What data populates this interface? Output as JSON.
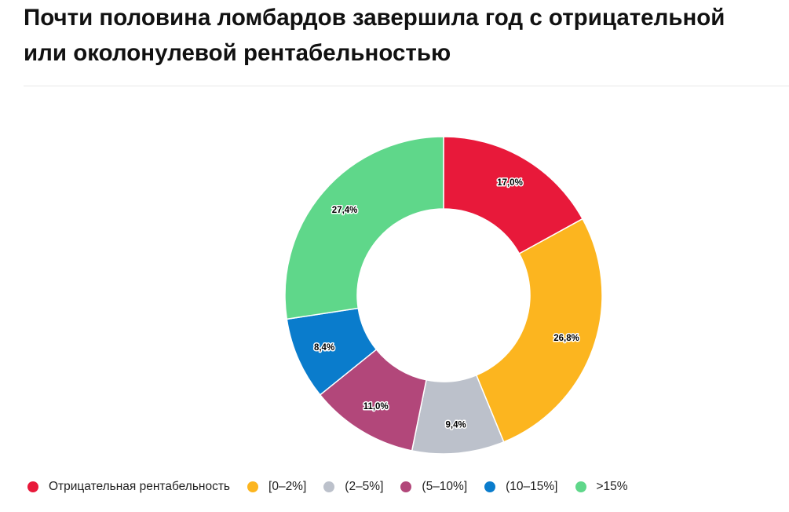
{
  "title_lines": [
    "Почти половина ломбардов завершила год с отрицательной",
    "или околонулевой рентабельностью"
  ],
  "chart_data": {
    "type": "pie",
    "donut": true,
    "title": "Почти половина ломбардов завершила год с отрицательной или околонулевой рентабельностью",
    "legend_position": "bottom-left",
    "slices": [
      {
        "name": "Отрицательная рентабельность",
        "value": 17.0,
        "label": "17,0%",
        "color": "#e8193a"
      },
      {
        "name": "[0–2%]",
        "value": 26.8,
        "label": "26,8%",
        "color": "#fcb51f"
      },
      {
        "name": "(2–5%]",
        "value": 9.4,
        "label": "9,4%",
        "color": "#bcc1cb"
      },
      {
        "name": "(5–10%]",
        "value": 11.0,
        "label": "11,0%",
        "color": "#b2477a"
      },
      {
        "name": "(10–15%]",
        "value": 8.4,
        "label": "8,4%",
        "color": "#0a7ccc"
      },
      {
        "name": ">15%",
        "value": 27.4,
        "label": "27,4%",
        "color": "#5fd78a"
      }
    ]
  }
}
